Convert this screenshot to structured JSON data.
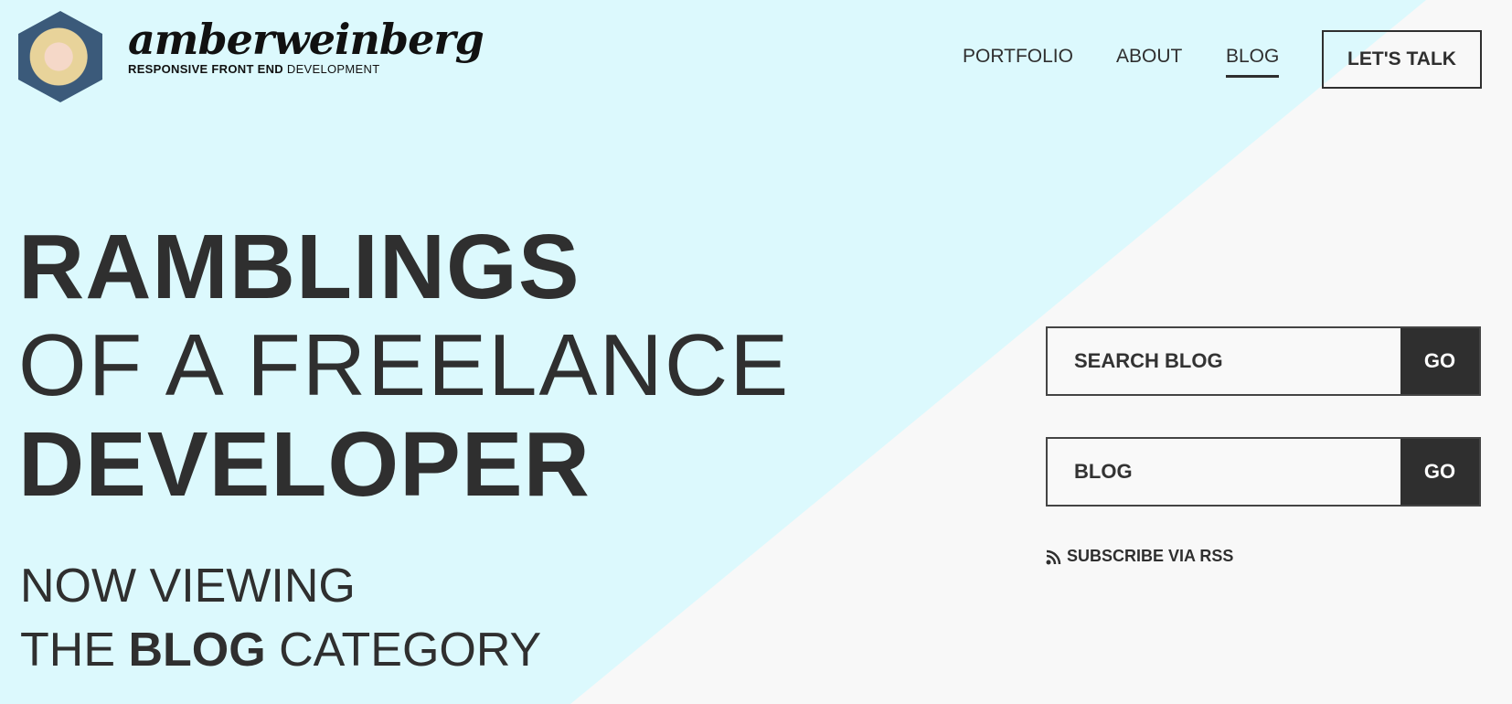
{
  "header": {
    "logo_name": "amberweinberg",
    "tagline_bold": "RESPONSIVE FRONT END",
    "tagline_light": "DEVELOPMENT",
    "nav": [
      {
        "label": "PORTFOLIO"
      },
      {
        "label": "ABOUT"
      },
      {
        "label": "BLOG",
        "active": true
      }
    ],
    "cta": "LET'S TALK"
  },
  "hero": {
    "line1": "RAMBLINGS",
    "line2": "OF A FREELANCE",
    "line3": "DEVELOPER",
    "viewing_line1": "NOW VIEWING",
    "viewing_prefix": "THE",
    "viewing_category": "BLOG",
    "viewing_suffix": "CATEGORY"
  },
  "sidebar": {
    "search_placeholder": "SEARCH BLOG",
    "search_go": "GO",
    "category_value": "BLOG",
    "category_go": "GO",
    "rss_label": "SUBSCRIBE VIA RSS",
    "rss_icon": "rss-icon"
  },
  "colors": {
    "cyan_bg": "#dcf9fd",
    "grey_bg": "#f8f8f8",
    "dark": "#2f2f2f"
  }
}
